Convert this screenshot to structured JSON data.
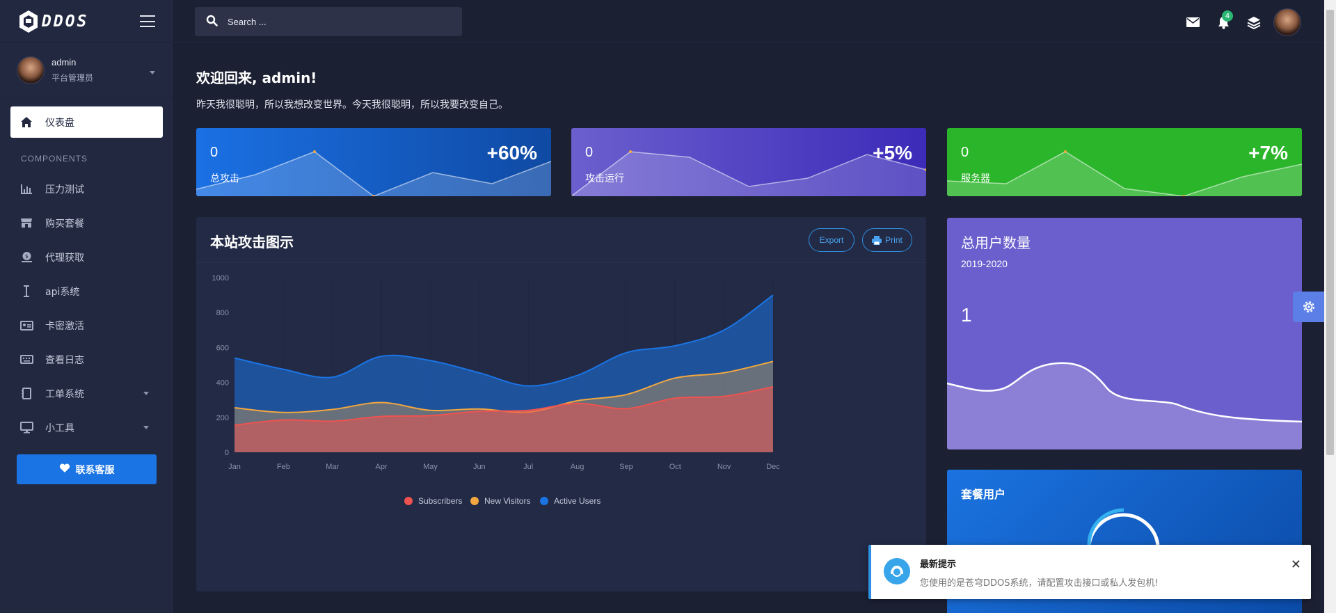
{
  "brand": {
    "name": "DDOS"
  },
  "user": {
    "name": "admin",
    "role": "平台管理员"
  },
  "sidebar": {
    "active": "仪表盘",
    "section_label": "COMPONENTS",
    "items": [
      {
        "label": "压力测试",
        "icon": "bar-chart-icon"
      },
      {
        "label": "购买套餐",
        "icon": "store-icon"
      },
      {
        "label": "代理获取",
        "icon": "coin-icon"
      },
      {
        "label": "api系统",
        "icon": "cursor-icon"
      },
      {
        "label": "卡密激活",
        "icon": "id-card-icon"
      },
      {
        "label": "查看日志",
        "icon": "keyboard-icon"
      },
      {
        "label": "工单系统",
        "icon": "notebook-icon"
      },
      {
        "label": "小工具",
        "icon": "monitor-icon"
      }
    ],
    "contact_label": "联系客服"
  },
  "topbar": {
    "search_placeholder": "Search ...",
    "notification_count": "4"
  },
  "welcome": {
    "title": "欢迎回来, admin!",
    "subtitle": "昨天我很聪明，所以我想改变世界。今天我很聪明，所以我要改变自己。"
  },
  "stats": [
    {
      "value": "0",
      "label": "总攻击",
      "change": "+60%",
      "color_from": "#1b70e3",
      "color_to": "#0f4aa4"
    },
    {
      "value": "0",
      "label": "攻击运行",
      "change": "+5%",
      "color_from": "#6b5fce",
      "color_to": "#3b2bb8"
    },
    {
      "value": "0",
      "label": "服务器",
      "change": "+7%",
      "color_from": "#2bb52b",
      "color_to": "#2bb52b"
    }
  ],
  "attack_chart": {
    "title": "本站攻击图示",
    "export_label": "Export",
    "print_label": "Print",
    "chart_data": {
      "type": "area",
      "categories": [
        "Jan",
        "Feb",
        "Mar",
        "Apr",
        "May",
        "Jun",
        "Jul",
        "Aug",
        "Sep",
        "Oct",
        "Nov",
        "Dec"
      ],
      "ylim": [
        0,
        1000
      ],
      "yticks": [
        "0",
        "200",
        "400",
        "600",
        "800",
        "1000"
      ],
      "series": [
        {
          "name": "Subscribers",
          "color": "#ef5350",
          "values": [
            155,
            185,
            178,
            205,
            210,
            235,
            240,
            280,
            250,
            310,
            320,
            375
          ]
        },
        {
          "name": "New Visitors",
          "color": "#f2a740",
          "values": [
            255,
            228,
            245,
            285,
            240,
            248,
            230,
            295,
            330,
            425,
            455,
            520
          ]
        },
        {
          "name": "Active Users",
          "color": "#1b74e4",
          "values": [
            540,
            475,
            430,
            550,
            525,
            455,
            380,
            440,
            570,
            610,
            700,
            900
          ]
        }
      ]
    }
  },
  "users_card": {
    "title": "总用户数量",
    "range": "2019-2020",
    "count": "1"
  },
  "package_card": {
    "title": "套餐用户"
  },
  "toast": {
    "title": "最新提示",
    "message": "您使用的是苍穹DDOS系统，请配置攻击接口或私人发包机!",
    "close": "✕"
  }
}
